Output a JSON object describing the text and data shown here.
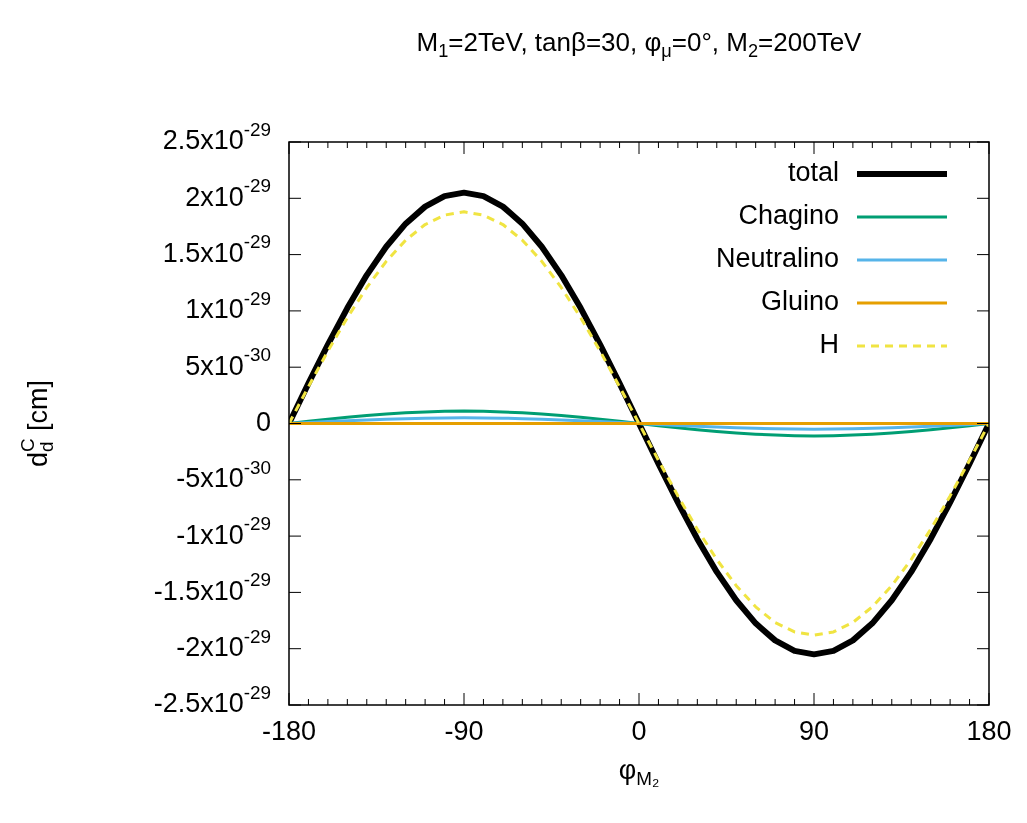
{
  "chart_data": {
    "type": "line",
    "title": "M$_{1}$=2TeV, tanβ=30, φ$_{μ}$=0°, M$_{2}$=200TeV",
    "xlabel": "φ$_{M₂}$",
    "ylabel": "d$_{d}$$^{C}$ [cm]",
    "x": [
      -180,
      -170,
      -160,
      -150,
      -140,
      -130,
      -120,
      -110,
      -100,
      -90,
      -80,
      -70,
      -60,
      -50,
      -40,
      -30,
      -20,
      -10,
      0,
      10,
      20,
      30,
      40,
      50,
      60,
      70,
      80,
      90,
      100,
      110,
      120,
      130,
      140,
      150,
      160,
      170,
      180
    ],
    "series": [
      {
        "name": "total",
        "color": "#000000",
        "line_style": "solid",
        "values": [
          0,
          3.56e-30,
          7.01e-30,
          1.025e-29,
          1.318e-29,
          1.57e-29,
          1.775e-29,
          1.926e-29,
          2.019e-29,
          2.05e-29,
          2.019e-29,
          1.926e-29,
          1.775e-29,
          1.57e-29,
          1.318e-29,
          1.025e-29,
          7.01e-30,
          3.56e-30,
          0,
          -3.56e-30,
          -7.01e-30,
          -1.025e-29,
          -1.318e-29,
          -1.57e-29,
          -1.775e-29,
          -1.926e-29,
          -2.019e-29,
          -2.05e-29,
          -2.019e-29,
          -1.926e-29,
          -1.775e-29,
          -1.57e-29,
          -1.318e-29,
          -1.025e-29,
          -7.01e-30,
          -3.56e-30,
          0
        ]
      },
      {
        "name": "Chagino",
        "color": "#009e73",
        "line_style": "solid",
        "values": [
          0,
          1.9e-31,
          3.8e-31,
          5.5e-31,
          7.1e-31,
          8.4e-31,
          9.5e-31,
          1.03e-30,
          1.08e-30,
          1.1e-30,
          1.08e-30,
          1.03e-30,
          9.5e-31,
          8.4e-31,
          7.1e-31,
          5.5e-31,
          3.8e-31,
          1.9e-31,
          0,
          -1.9e-31,
          -3.8e-31,
          -5.5e-31,
          -7.1e-31,
          -8.4e-31,
          -9.5e-31,
          -1.03e-30,
          -1.08e-30,
          -1.1e-30,
          -1.08e-30,
          -1.03e-30,
          -9.5e-31,
          -8.4e-31,
          -7.1e-31,
          -5.5e-31,
          -3.8e-31,
          -1.9e-31,
          0
        ]
      },
      {
        "name": "Neutralino",
        "color": "#56b4e9",
        "line_style": "solid",
        "values": [
          0,
          9e-32,
          1.7e-31,
          2.5e-31,
          3.2e-31,
          3.8e-31,
          4.3e-31,
          4.7e-31,
          4.9e-31,
          5e-31,
          4.9e-31,
          4.7e-31,
          4.3e-31,
          3.8e-31,
          3.2e-31,
          2.5e-31,
          1.7e-31,
          9e-32,
          0,
          -9e-32,
          -1.7e-31,
          -2.5e-31,
          -3.2e-31,
          -3.8e-31,
          -4.3e-31,
          -4.7e-31,
          -4.9e-31,
          -5e-31,
          -4.9e-31,
          -4.7e-31,
          -4.3e-31,
          -3.8e-31,
          -3.2e-31,
          -2.5e-31,
          -1.7e-31,
          -9e-32,
          0
        ]
      },
      {
        "name": "Gluino",
        "color": "#e69f00",
        "line_style": "solid",
        "values": [
          0,
          0,
          0,
          0,
          0,
          0,
          0,
          0,
          0,
          0,
          0,
          0,
          0,
          0,
          0,
          0,
          0,
          0,
          0,
          0,
          0,
          0,
          0,
          0,
          0,
          0,
          0,
          0,
          0,
          0,
          0,
          0,
          0,
          0,
          0,
          0,
          0
        ]
      },
      {
        "name": "H",
        "color": "#f0e442",
        "line_style": "dashed",
        "values": [
          0,
          3.27e-30,
          6.43e-30,
          9.4e-30,
          1.208e-29,
          1.44e-29,
          1.628e-29,
          1.767e-29,
          1.851e-29,
          1.88e-29,
          1.851e-29,
          1.767e-29,
          1.628e-29,
          1.44e-29,
          1.208e-29,
          9.4e-30,
          6.43e-30,
          3.27e-30,
          0,
          -3.27e-30,
          -6.43e-30,
          -9.4e-30,
          -1.208e-29,
          -1.44e-29,
          -1.628e-29,
          -1.767e-29,
          -1.851e-29,
          -1.88e-29,
          -1.851e-29,
          -1.767e-29,
          -1.628e-29,
          -1.44e-29,
          -1.208e-29,
          -9.4e-30,
          -6.43e-30,
          -3.27e-30,
          0
        ]
      }
    ],
    "xlim": [
      -180,
      180
    ],
    "xticks": [
      -180,
      {
        "value": -170,
        "label": null
      },
      {
        "value": -160,
        "label": null
      },
      {
        "value": -150,
        "label": null
      },
      {
        "value": -140,
        "label": null
      },
      {
        "value": -130,
        "label": null
      },
      {
        "value": -120,
        "label": null
      },
      {
        "value": -110,
        "label": null
      },
      {
        "value": -100,
        "label": null
      },
      -90,
      {
        "value": -80,
        "label": null
      },
      {
        "value": -70,
        "label": null
      },
      {
        "value": -60,
        "label": null
      },
      {
        "value": -50,
        "label": null
      },
      {
        "value": -40,
        "label": null
      },
      {
        "value": -30,
        "label": null
      },
      {
        "value": -20,
        "label": null
      },
      {
        "value": -10,
        "label": null
      },
      0,
      {
        "value": 10,
        "label": null
      },
      {
        "value": 20,
        "label": null
      },
      {
        "value": 30,
        "label": null
      },
      {
        "value": 40,
        "label": null
      },
      {
        "value": 50,
        "label": null
      },
      {
        "value": 60,
        "label": null
      },
      {
        "value": 70,
        "label": null
      },
      {
        "value": 80,
        "label": null
      },
      90,
      {
        "value": 100,
        "label": null
      },
      {
        "value": 110,
        "label": null
      },
      {
        "value": 120,
        "label": null
      },
      {
        "value": 130,
        "label": null
      },
      {
        "value": 140,
        "label": null
      },
      {
        "value": 150,
        "label": null
      },
      {
        "value": 160,
        "label": null
      },
      {
        "value": 170,
        "label": null
      },
      180
    ],
    "ylim": [
      -2.5e-29,
      2.5e-29
    ],
    "yticks": [
      {
        "value": -2.5e-29,
        "label": "-2.5x10$^{-29}$"
      },
      {
        "value": -2e-29,
        "label": "-2x10$^{-29}$"
      },
      {
        "value": -1.5e-29,
        "label": "-1.5x10$^{-29}$"
      },
      {
        "value": -1e-29,
        "label": "-1x10$^{-29}$"
      },
      {
        "value": -5e-30,
        "label": "-5x10$^{-30}$"
      },
      {
        "value": 0,
        "label": "0"
      },
      {
        "value": 5e-30,
        "label": "5x10$^{-30}$"
      },
      {
        "value": 1e-29,
        "label": "1x10$^{-29}$"
      },
      {
        "value": 1.5e-29,
        "label": "1.5x10$^{-29}$"
      },
      {
        "value": 2e-29,
        "label": "2x10$^{-29}$"
      },
      {
        "value": 2.5e-29,
        "label": "2.5x10$^{-29}$"
      }
    ],
    "legend": "top right",
    "marker": "none"
  }
}
